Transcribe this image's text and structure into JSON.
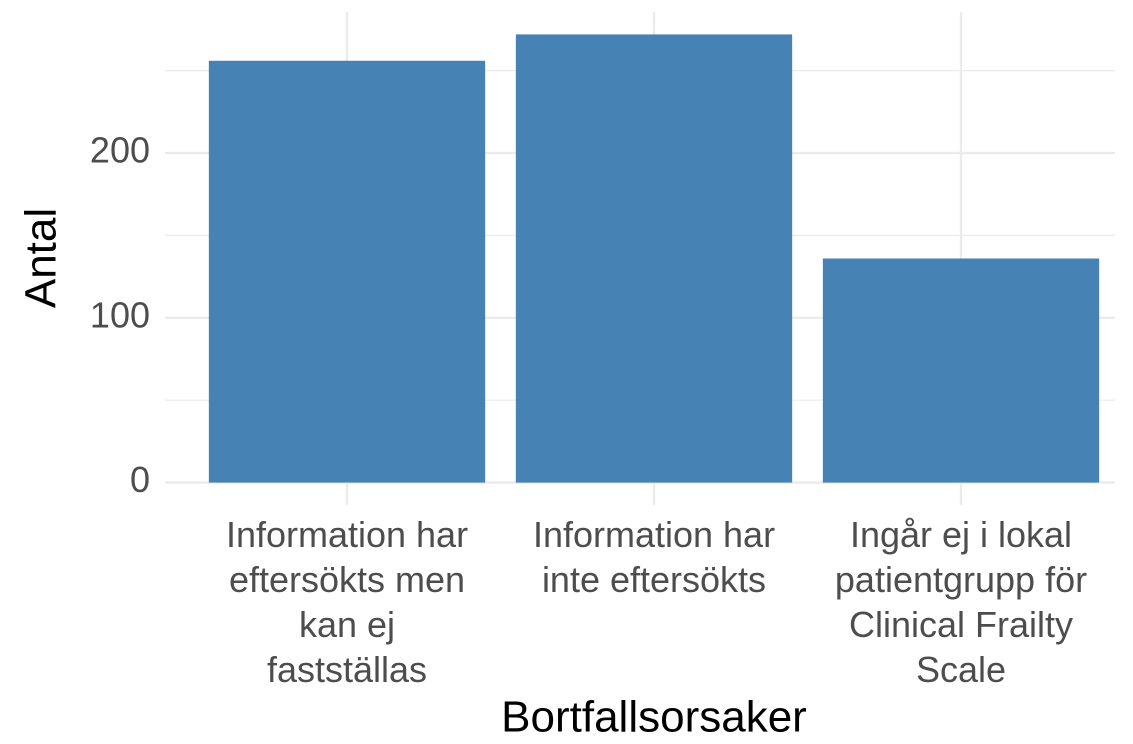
{
  "chart_data": {
    "type": "bar",
    "x_label": "Bortfallsorsaker",
    "y_label": "Antal",
    "categories": [
      "Information har\neftersökts men\nkan ej\nfastställas",
      "Information har\ninte eftersökts",
      "Ingår ej i lokal\npatientgrupp för\nClinical Frailty\nScale"
    ],
    "values": [
      256,
      272,
      136
    ],
    "color": "#4682b4",
    "ylim": [
      -13.6,
      285.6
    ],
    "yticks": [
      0,
      100,
      200
    ],
    "minor_yticks": [
      50,
      150,
      250
    ],
    "grid": true
  }
}
